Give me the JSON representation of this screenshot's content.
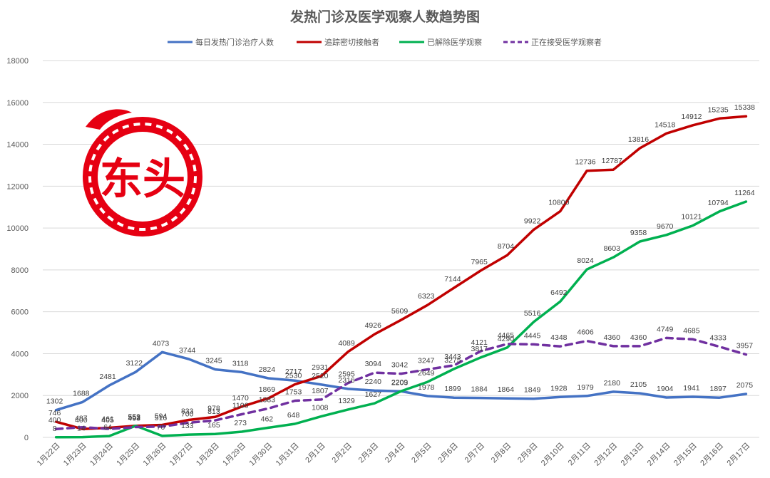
{
  "chart_data": {
    "type": "line",
    "title": "发热门诊及医学观察人数趋势图",
    "xlabel": "",
    "ylabel": "",
    "ylim": [
      0,
      18000
    ],
    "yticks": [
      0,
      2000,
      4000,
      6000,
      8000,
      10000,
      12000,
      14000,
      16000,
      18000
    ],
    "grid": true,
    "legend_position": "top",
    "categories": [
      "1月22日",
      "1月23日",
      "1月24日",
      "1月25日",
      "1月26日",
      "1月27日",
      "1月28日",
      "1月29日",
      "1月30日",
      "1月31日",
      "2月1日",
      "2月2日",
      "2月3日",
      "2月4日",
      "2月5日",
      "2月6日",
      "2月7日",
      "2月8日",
      "2月9日",
      "2月10日",
      "2月11日",
      "2月12日",
      "2月13日",
      "2月14日",
      "2月15日",
      "2月16日",
      "2月17日"
    ],
    "series": [
      {
        "name": "每日发热门诊治疗人数",
        "color": "#4472c4",
        "dashed": false,
        "values": [
          1302,
          1688,
          2481,
          3122,
          4073,
          3744,
          3245,
          3118,
          2824,
          2717,
          2520,
          2316,
          2240,
          2203,
          1978,
          1899,
          1884,
          1864,
          1849,
          1928,
          1979,
          2180,
          2105,
          1904,
          1941,
          1897,
          2075
        ]
      },
      {
        "name": "追踪密切接触者",
        "color": "#c00000",
        "dashed": false,
        "values": [
          746,
          400,
          461,
          552,
          594,
          833,
          978,
          1470,
          1869,
          2530,
          2931,
          4089,
          4926,
          5609,
          6323,
          7144,
          7965,
          8704,
          9922,
          10800,
          12736,
          12787,
          13816,
          14518,
          14912,
          15235,
          15338
        ]
      },
      {
        "name": "已解除医学观察",
        "color": "#00b050",
        "dashed": false,
        "values": [
          8,
          14,
          64,
          553,
          70,
          133,
          165,
          273,
          462,
          648,
          1008,
          1329,
          1627,
          2209,
          2649,
          3275,
          3817,
          4290,
          5516,
          6492,
          8024,
          8603,
          9358,
          9670,
          10121,
          10794,
          11264
        ]
      },
      {
        "name": "正在接受医学观察者",
        "color": "#7030a0",
        "dashed": true,
        "values": [
          400,
          487,
          405,
          493,
          516,
          700,
          813,
          1106,
          1383,
          1753,
          1807,
          2595,
          3094,
          3042,
          3247,
          3443,
          4121,
          4465,
          4445,
          4348,
          4606,
          4360,
          4360,
          4749,
          4685,
          4333,
          3957
        ]
      }
    ]
  },
  "logo": {
    "text": "东头",
    "color": "#e60012"
  }
}
